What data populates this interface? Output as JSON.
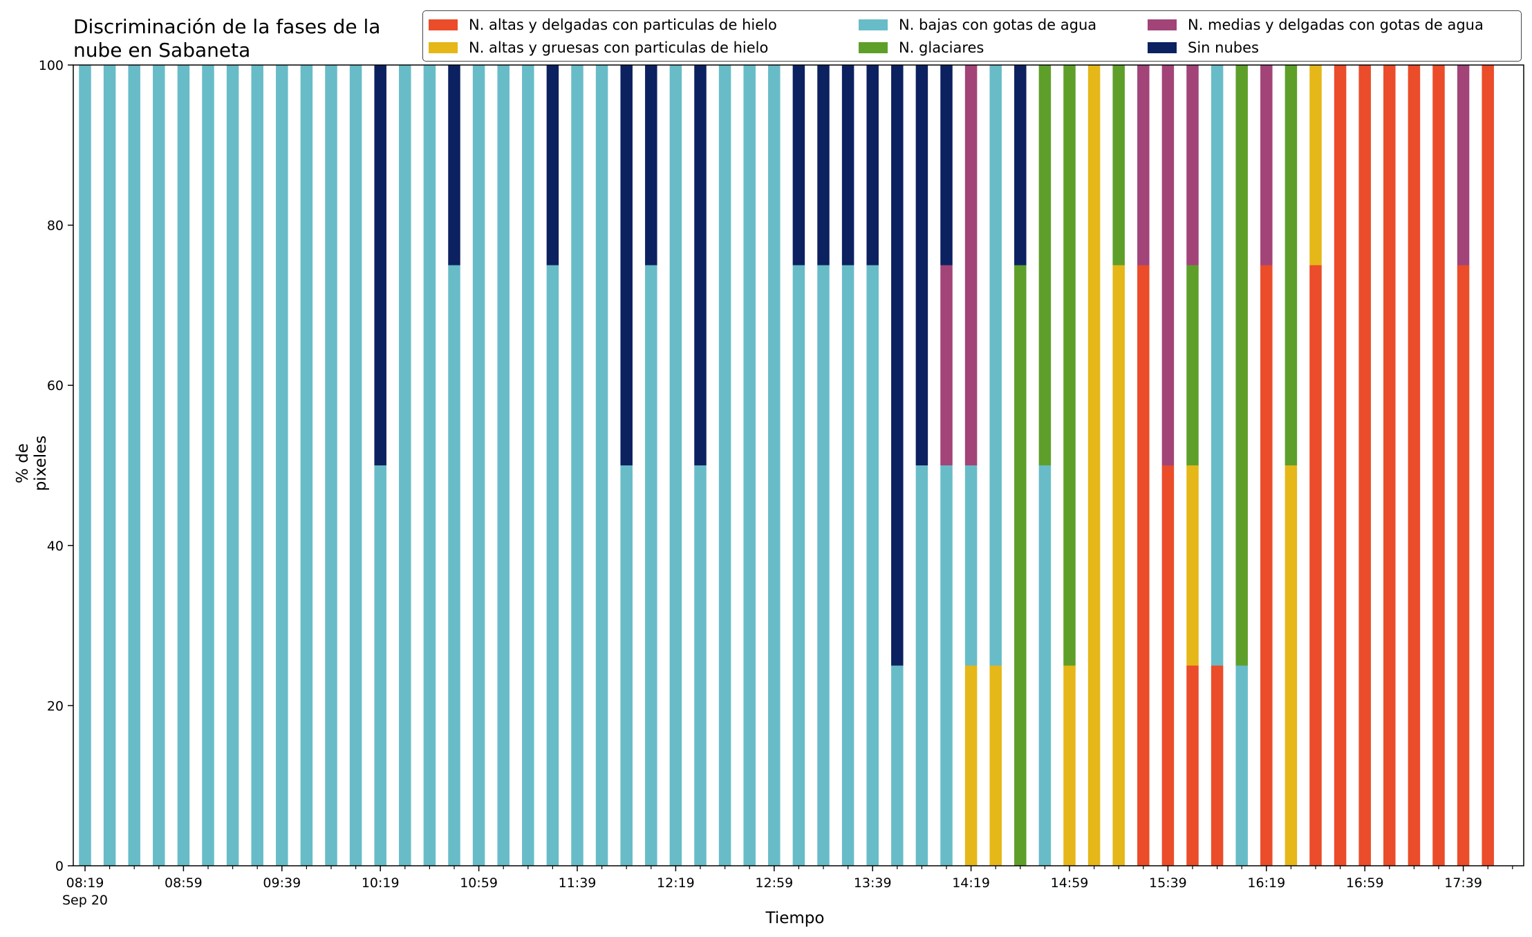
{
  "chart_data": {
    "type": "bar",
    "stacked": true,
    "title": "Discriminación de la fases de la nube en Sabaneta",
    "xlabel": "Tiempo",
    "ylabel": "% de pixeles",
    "ylim": [
      0,
      100
    ],
    "yticks": [
      0,
      20,
      40,
      60,
      80,
      100
    ],
    "grid": false,
    "legend_position": "top-right",
    "legend_ncol": 3,
    "xtick_labels": [
      "08:19",
      "08:59",
      "09:39",
      "10:19",
      "10:59",
      "11:39",
      "12:19",
      "12:59",
      "13:39",
      "14:19",
      "14:59",
      "15:39",
      "16:19",
      "16:59",
      "17:39"
    ],
    "xtick_sublabel": "Sep 20",
    "bar_count": 59,
    "bar_interval_minutes": 10,
    "series": [
      {
        "name": "N. altas y delgadas con particulas de hielo",
        "color": "#eb4c2a",
        "values": [
          0,
          0,
          0,
          0,
          0,
          0,
          0,
          0,
          0,
          0,
          0,
          0,
          0,
          0,
          0,
          0,
          0,
          0,
          0,
          0,
          0,
          0,
          0,
          0,
          0,
          0,
          0,
          0,
          0,
          0,
          0,
          0,
          0,
          0,
          0,
          0,
          0,
          0,
          0,
          0,
          0,
          0,
          0,
          75,
          50,
          25,
          25,
          0,
          75,
          0,
          75,
          100,
          100,
          100,
          100,
          100,
          75,
          100,
          0
        ]
      },
      {
        "name": "N. altas y gruesas con particulas de hielo",
        "color": "#e5b718",
        "values": [
          0,
          0,
          0,
          0,
          0,
          0,
          0,
          0,
          0,
          0,
          0,
          0,
          0,
          0,
          0,
          0,
          0,
          0,
          0,
          0,
          0,
          0,
          0,
          0,
          0,
          0,
          0,
          0,
          0,
          0,
          0,
          0,
          0,
          0,
          0,
          0,
          25,
          25,
          0,
          0,
          25,
          100,
          75,
          0,
          0,
          25,
          0,
          0,
          0,
          50,
          25,
          0,
          0,
          0,
          0,
          0,
          0,
          0,
          0
        ]
      },
      {
        "name": "N. bajas con gotas de agua",
        "color": "#68bcc8",
        "values": [
          100,
          100,
          100,
          100,
          100,
          100,
          100,
          100,
          100,
          100,
          100,
          100,
          50,
          100,
          100,
          75,
          100,
          100,
          100,
          75,
          100,
          100,
          50,
          75,
          100,
          50,
          100,
          100,
          100,
          75,
          75,
          75,
          75,
          25,
          50,
          50,
          25,
          75,
          0,
          50,
          0,
          0,
          0,
          0,
          0,
          0,
          75,
          25,
          0,
          0,
          0,
          0,
          0,
          0,
          0,
          0,
          0,
          0,
          0
        ]
      },
      {
        "name": "N. glaciares",
        "color": "#5e9f2a",
        "values": [
          0,
          0,
          0,
          0,
          0,
          0,
          0,
          0,
          0,
          0,
          0,
          0,
          0,
          0,
          0,
          0,
          0,
          0,
          0,
          0,
          0,
          0,
          0,
          0,
          0,
          0,
          0,
          0,
          0,
          0,
          0,
          0,
          0,
          0,
          0,
          0,
          0,
          0,
          75,
          50,
          75,
          0,
          25,
          0,
          0,
          25,
          0,
          75,
          0,
          50,
          0,
          0,
          0,
          0,
          0,
          0,
          0,
          0,
          0
        ]
      },
      {
        "name": "N. medias y delgadas con gotas de agua",
        "color": "#a24478",
        "values": [
          0,
          0,
          0,
          0,
          0,
          0,
          0,
          0,
          0,
          0,
          0,
          0,
          0,
          0,
          0,
          0,
          0,
          0,
          0,
          0,
          0,
          0,
          0,
          0,
          0,
          0,
          0,
          0,
          0,
          0,
          0,
          0,
          0,
          0,
          0,
          25,
          50,
          0,
          0,
          0,
          0,
          0,
          0,
          25,
          50,
          25,
          0,
          0,
          25,
          0,
          0,
          0,
          0,
          0,
          0,
          0,
          25,
          0,
          0
        ]
      },
      {
        "name": "Sin nubes",
        "color": "#0c2160",
        "values": [
          0,
          0,
          0,
          0,
          0,
          0,
          0,
          0,
          0,
          0,
          0,
          0,
          50,
          0,
          0,
          25,
          0,
          0,
          0,
          25,
          0,
          0,
          50,
          25,
          0,
          50,
          0,
          0,
          0,
          25,
          25,
          25,
          25,
          75,
          50,
          25,
          0,
          0,
          25,
          0,
          0,
          0,
          0,
          0,
          0,
          0,
          0,
          0,
          0,
          0,
          0,
          0,
          0,
          0,
          0,
          0,
          0,
          0,
          0
        ]
      }
    ]
  }
}
